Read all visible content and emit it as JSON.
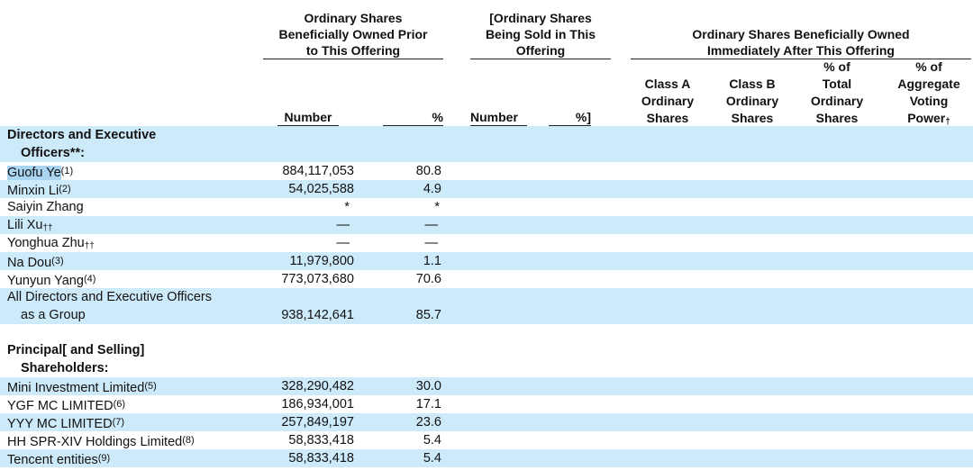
{
  "headers": {
    "prior_group": [
      "Ordinary Shares",
      "Beneficially Owned Prior",
      "to This Offering"
    ],
    "sold_group": [
      "[Ordinary Shares",
      "Being Sold in This",
      "Offering"
    ],
    "after_group": [
      "Ordinary Shares Beneficially Owned",
      "Immediately After This Offering"
    ],
    "col_number": "Number",
    "col_pct": "%",
    "col_sold_number": "Number",
    "col_sold_pct": "%]",
    "col_class_a": [
      "Class A",
      "Ordinary",
      "Shares"
    ],
    "col_class_b": [
      "Class B",
      "Ordinary",
      "Shares"
    ],
    "col_total_pct": [
      "% of",
      "Total",
      "Ordinary",
      "Shares"
    ],
    "col_voting_pct": [
      "% of",
      "Aggregate",
      "Voting",
      "Power"
    ],
    "voting_dagger": "†"
  },
  "sections": {
    "directors_title_1": "Directors and Executive",
    "directors_title_2": "Officers**:",
    "principal_title_1": "Principal[ and Selling]",
    "principal_title_2": "Shareholders:"
  },
  "directors": [
    {
      "name": "Guofu Ye",
      "fn": "(1)",
      "number": "884,117,053",
      "pct": "80.8"
    },
    {
      "name": "Minxin Li",
      "fn": "(2)",
      "number": "54,025,588",
      "pct": "4.9"
    },
    {
      "name": "Saiyin Zhang",
      "fn": "",
      "number": "*",
      "pct": "*"
    },
    {
      "name": "Lili Xu",
      "fn": "††",
      "number": "—",
      "pct": "—"
    },
    {
      "name": "Yonghua Zhu",
      "fn": "††",
      "number": "—",
      "pct": "—"
    },
    {
      "name": "Na Dou",
      "fn": "(3)",
      "number": "11,979,800",
      "pct": "1.1"
    },
    {
      "name": "Yunyun Yang",
      "fn": "(4)",
      "number": "773,073,680",
      "pct": "70.6"
    }
  ],
  "group_row": {
    "name_1": "All Directors and Executive Officers",
    "name_2": "as a Group",
    "number": "938,142,641",
    "pct": "85.7"
  },
  "principals": [
    {
      "name": "Mini Investment Limited",
      "fn": "(5)",
      "number": "328,290,482",
      "pct": "30.0"
    },
    {
      "name": "YGF MC LIMITED",
      "fn": "(6)",
      "number": "186,934,001",
      "pct": "17.1"
    },
    {
      "name": "YYY MC LIMITED",
      "fn": "(7)",
      "number": "257,849,197",
      "pct": "23.6"
    },
    {
      "name": "HH SPR-XIV Holdings Limited",
      "fn": "(8)",
      "number": "58,833,418",
      "pct": "5.4"
    },
    {
      "name": "Tencent entities",
      "fn": "(9)",
      "number": "58,833,418",
      "pct": "5.4"
    }
  ]
}
